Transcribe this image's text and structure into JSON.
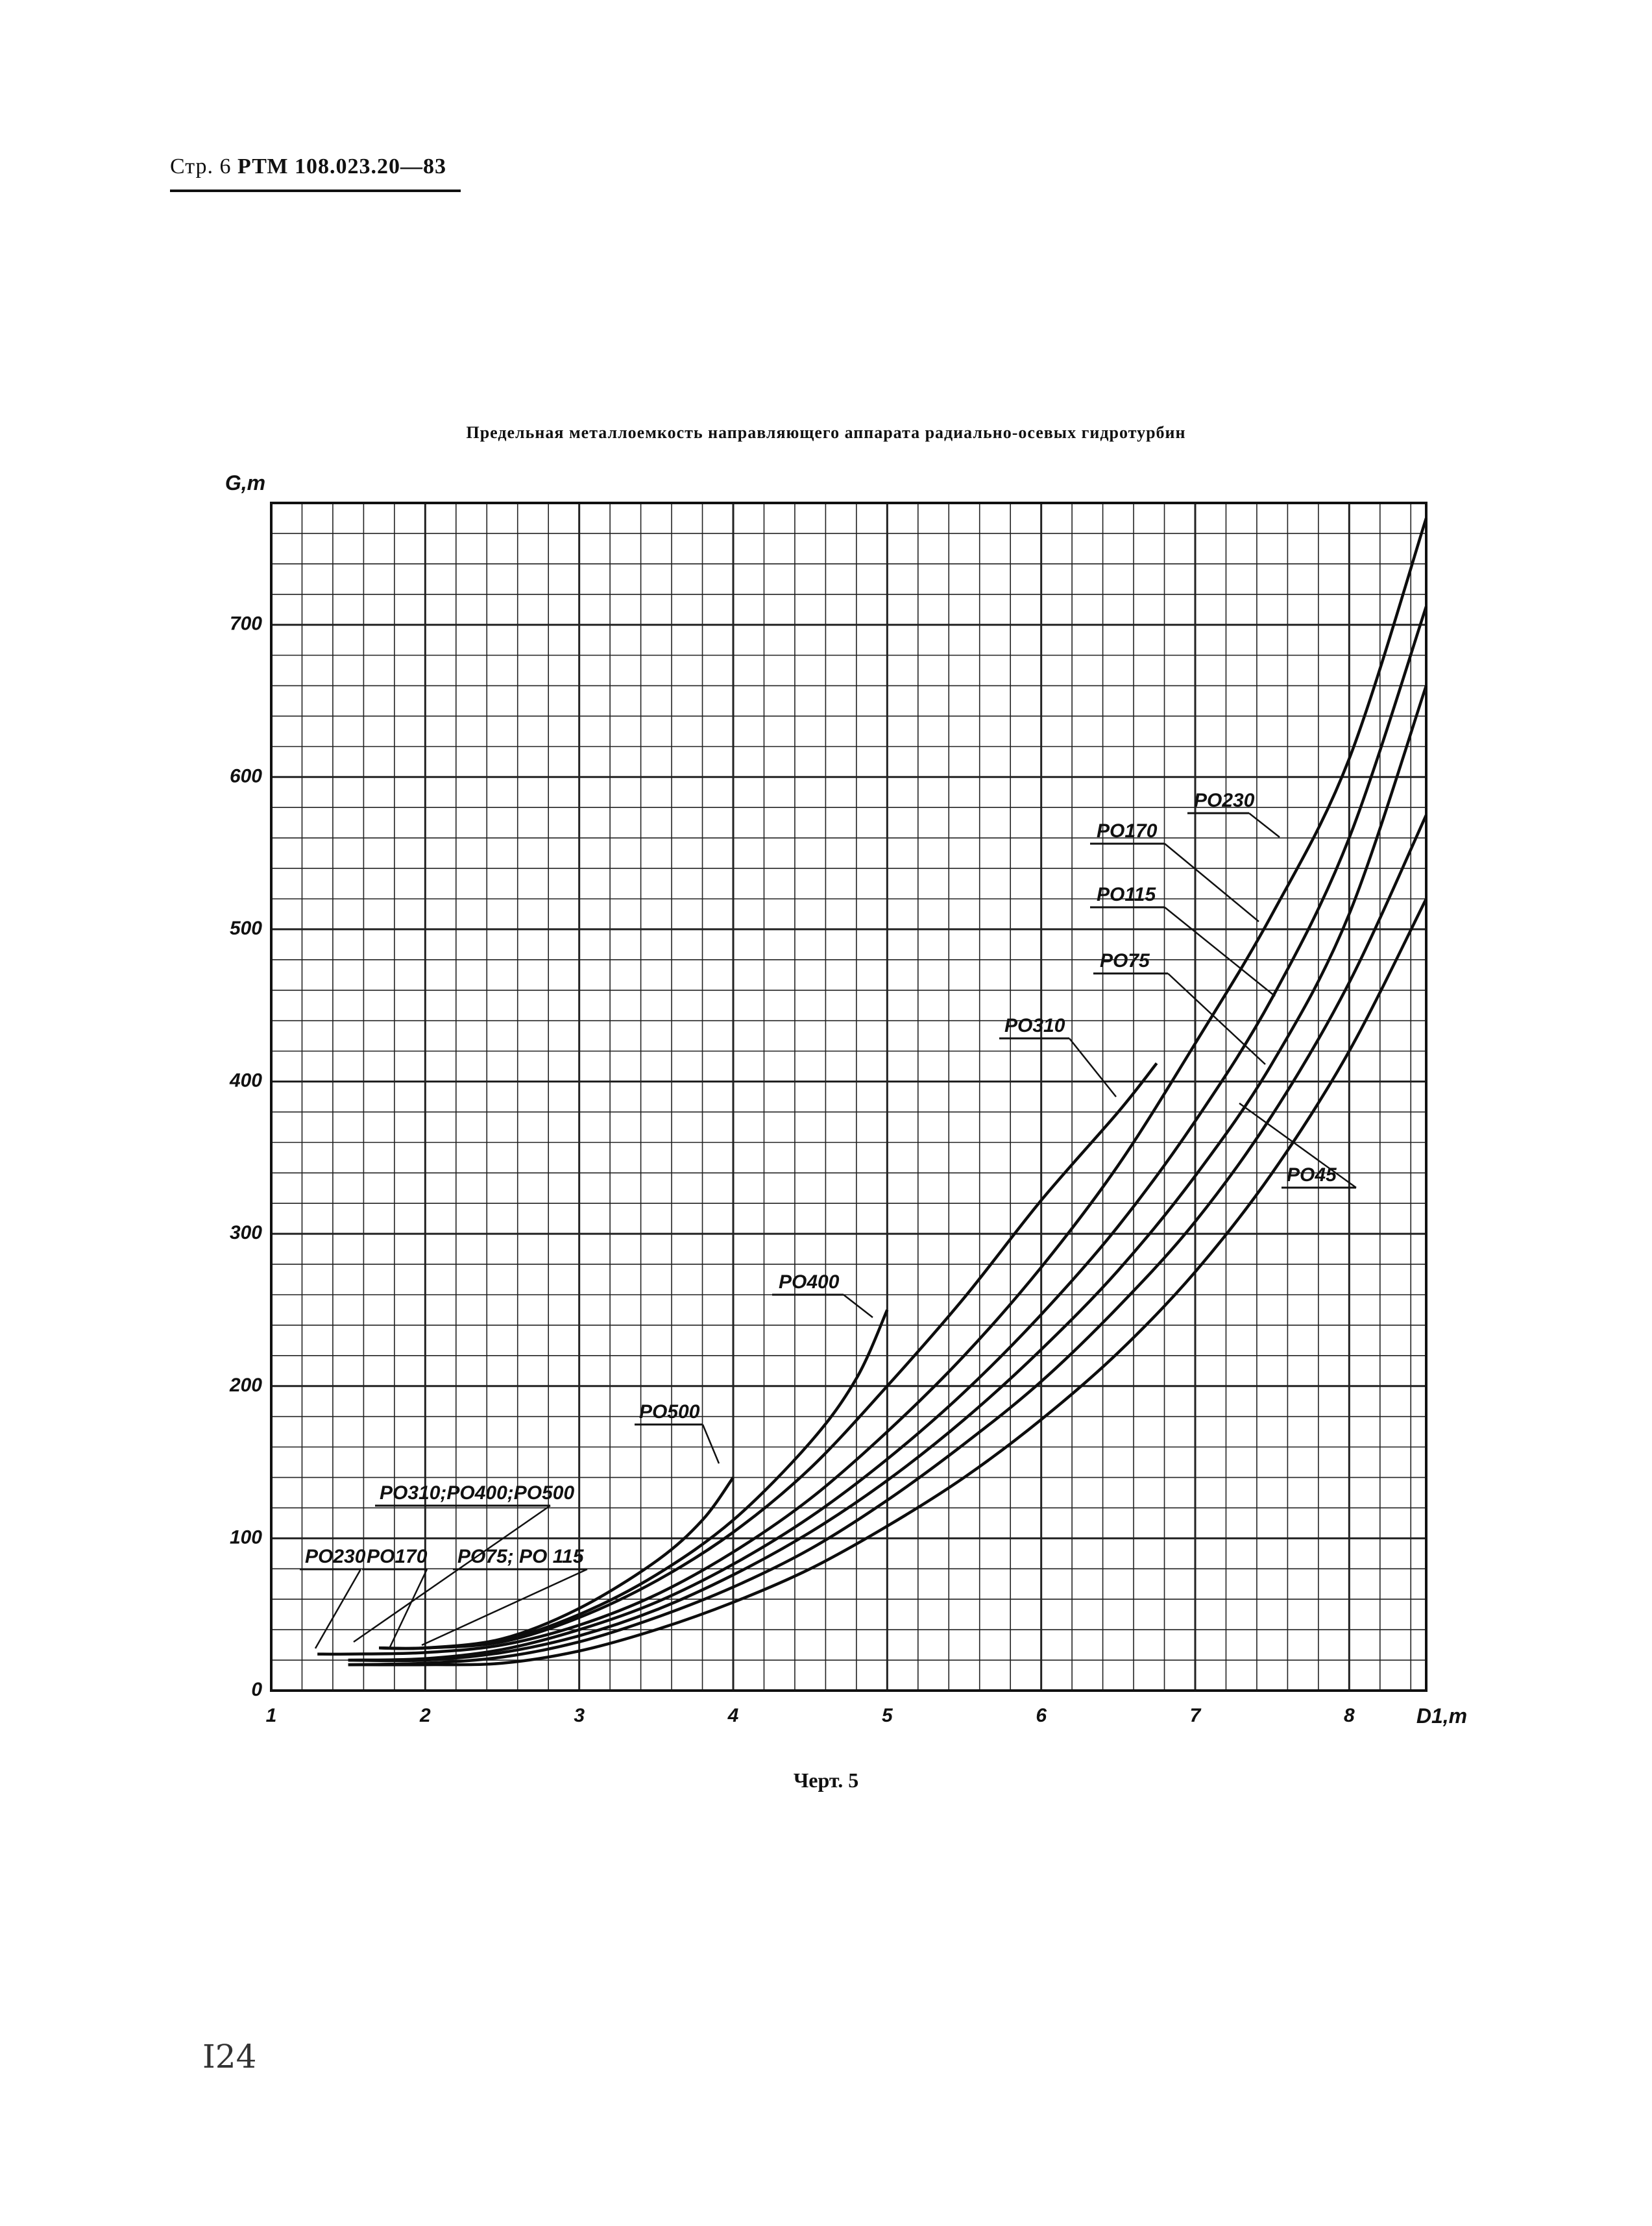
{
  "header": {
    "page_label": "Стр. 6",
    "doc_code": "РТМ 108.023.20—83"
  },
  "title": "Предельная металлоемкость направляющего аппарата радиально-осевых гидротурбин",
  "caption": "Черт. 5",
  "page_number": "I24",
  "chart_data": {
    "type": "line",
    "title": "Предельная металлоемкость направляющего аппарата радиально-осевых гидротурбин",
    "xlabel": "D1,m",
    "ylabel": "G,m",
    "xlim": [
      1,
      8.5
    ],
    "ylim": [
      0,
      780
    ],
    "x_ticks": [
      1,
      2,
      3,
      4,
      5,
      6,
      7,
      8
    ],
    "y_ticks": [
      0,
      100,
      200,
      300,
      400,
      500,
      600,
      700
    ],
    "grid": true,
    "series": [
      {
        "name": "PO45",
        "x": [
          1.5,
          2.0,
          2.5,
          3.0,
          3.5,
          4.0,
          4.5,
          5.0,
          5.5,
          6.0,
          6.5,
          7.0,
          7.5,
          8.0,
          8.5
        ],
        "values": [
          17,
          17,
          18,
          26,
          40,
          58,
          80,
          108,
          140,
          178,
          222,
          275,
          340,
          420,
          520
        ]
      },
      {
        "name": "PO75",
        "x": [
          1.5,
          2.0,
          2.5,
          3.0,
          3.5,
          4.0,
          4.5,
          5.0,
          5.5,
          6.0,
          6.5,
          7.0,
          7.5,
          8.0,
          8.5
        ],
        "values": [
          17,
          18,
          22,
          32,
          48,
          68,
          93,
          125,
          162,
          203,
          252,
          308,
          378,
          465,
          575
        ]
      },
      {
        "name": "PO115",
        "x": [
          1.5,
          2.0,
          2.5,
          3.0,
          3.5,
          4.0,
          4.5,
          5.0,
          5.5,
          6.0,
          6.5,
          7.0,
          7.5,
          8.0,
          8.5
        ],
        "values": [
          20,
          20,
          25,
          36,
          53,
          76,
          104,
          138,
          178,
          224,
          276,
          338,
          412,
          510,
          660
        ]
      },
      {
        "name": "PO170",
        "x": [
          1.5,
          2.0,
          2.5,
          3.0,
          3.5,
          4.0,
          4.5,
          5.0,
          5.5,
          6.0,
          6.5,
          7.0,
          7.5,
          8.0,
          8.5
        ],
        "values": [
          20,
          21,
          27,
          40,
          58,
          83,
          114,
          152,
          196,
          247,
          305,
          374,
          455,
          560,
          712
        ]
      },
      {
        "name": "PO230",
        "x": [
          1.3,
          1.5,
          2.0,
          2.5,
          3.0,
          3.5,
          4.0,
          4.5,
          5.0,
          5.5,
          6.0,
          6.5,
          7.0,
          7.5,
          8.0,
          8.5
        ],
        "values": [
          24,
          24,
          25,
          30,
          43,
          63,
          91,
          126,
          170,
          220,
          278,
          345,
          425,
          510,
          612,
          770
        ]
      },
      {
        "name": "PO310",
        "x": [
          1.7,
          2.0,
          2.5,
          3.0,
          3.5,
          4.0,
          4.5,
          5.0,
          5.5,
          6.0,
          6.5,
          6.75
        ],
        "values": [
          28,
          28,
          32,
          48,
          72,
          104,
          146,
          200,
          258,
          322,
          380,
          412
        ]
      },
      {
        "name": "PO400",
        "x": [
          1.7,
          2.0,
          2.5,
          3.0,
          3.5,
          4.0,
          4.5,
          4.8,
          5.0
        ],
        "values": [
          28,
          28,
          33,
          50,
          76,
          112,
          163,
          205,
          250
        ]
      },
      {
        "name": "PO500",
        "x": [
          1.7,
          2.0,
          2.5,
          3.0,
          3.5,
          3.8,
          4.0
        ],
        "values": [
          28,
          28,
          34,
          54,
          85,
          112,
          140
        ]
      }
    ],
    "annotations": [
      "PO230",
      "PO170",
      "PO115",
      "PO75",
      "PO310",
      "PO45",
      "PO400",
      "PO500",
      "PO310;PO400;PO500",
      "PO230",
      "PO170",
      "PO75; PO 115"
    ]
  }
}
